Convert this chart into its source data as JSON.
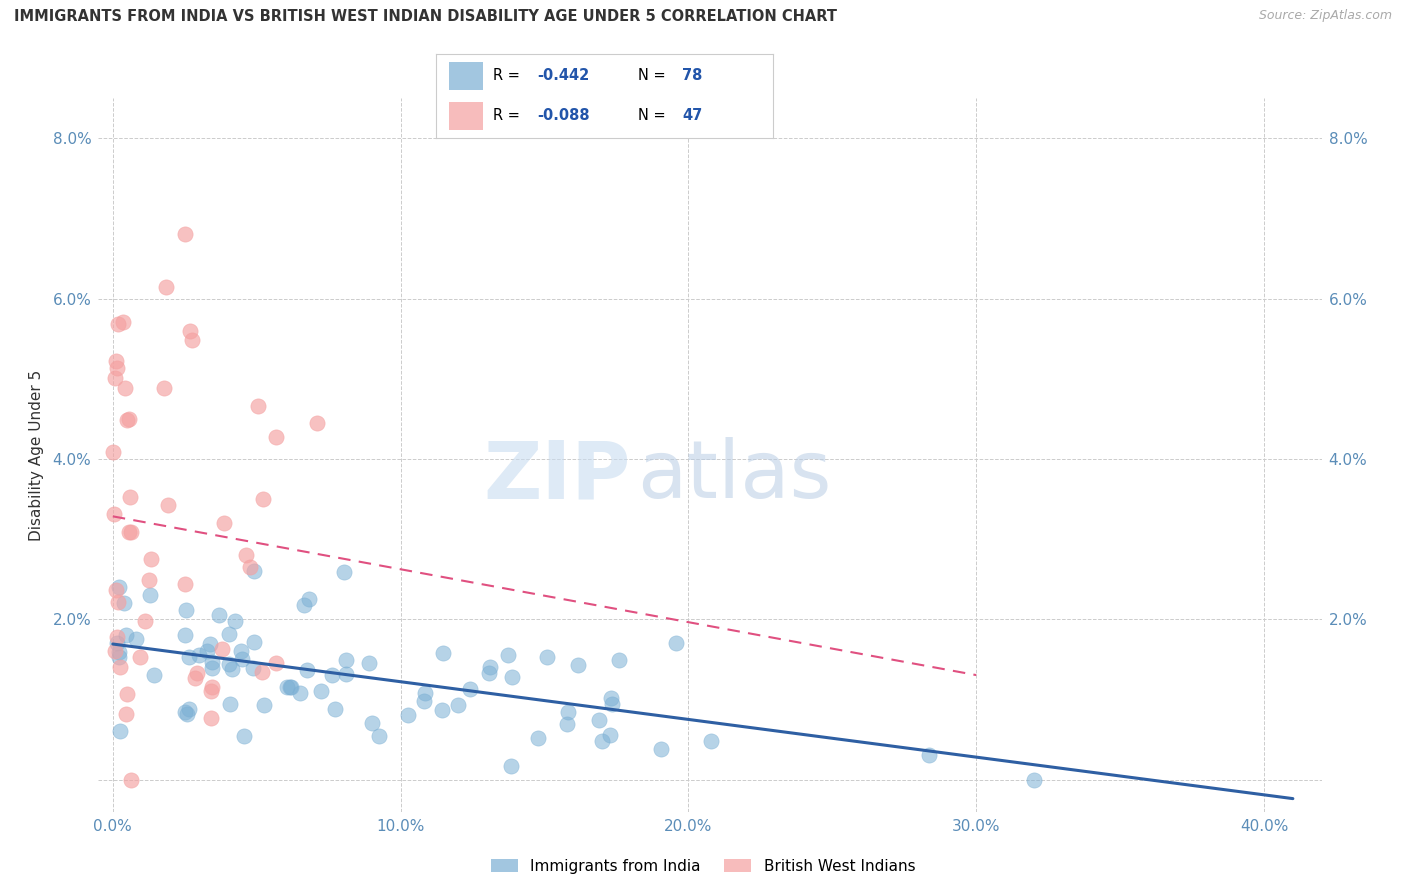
{
  "title": "IMMIGRANTS FROM INDIA VS BRITISH WEST INDIAN DISABILITY AGE UNDER 5 CORRELATION CHART",
  "source": "Source: ZipAtlas.com",
  "ylabel": "Disability Age Under 5",
  "xlabel_ticks": [
    "0.0%",
    "10.0%",
    "20.0%",
    "30.0%",
    "40.0%"
  ],
  "ylabel_ticks_left": [
    "",
    "2.0%",
    "4.0%",
    "6.0%",
    "8.0%"
  ],
  "ylabel_ticks_right": [
    "",
    "2.0%",
    "4.0%",
    "6.0%",
    "8.0%"
  ],
  "xlim": [
    -0.005,
    0.42
  ],
  "ylim": [
    -0.004,
    0.085
  ],
  "india_R": -0.442,
  "india_N": 78,
  "bwi_R": -0.088,
  "bwi_N": 47,
  "india_color": "#7BAFD4",
  "bwi_color": "#F4A0A0",
  "india_line_color": "#2E5FA3",
  "bwi_line_color": "#E05080",
  "watermark_zip": "ZIP",
  "watermark_atlas": "atlas",
  "background_color": "#FFFFFF",
  "grid_color": "#CCCCCC",
  "legend_label_india": "Immigrants from India",
  "legend_label_bwi": "British West Indians",
  "title_color": "#333333",
  "axis_label_color": "#5B8DB8",
  "legend_R_color": "#000000",
  "legend_N_color": "#2255AA"
}
